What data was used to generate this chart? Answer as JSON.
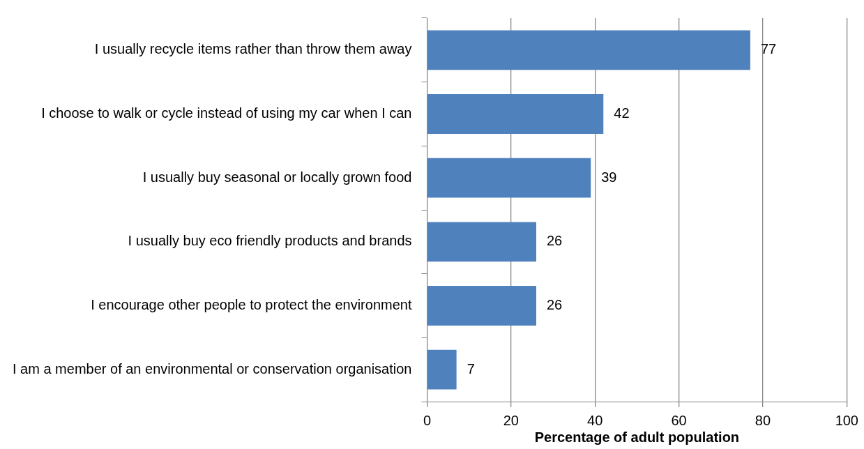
{
  "chart_data": {
    "type": "bar",
    "orientation": "horizontal",
    "categories": [
      "I usually recycle items rather than throw them away",
      "I choose to walk or cycle instead of using my car when I can",
      "I usually buy seasonal or locally grown food",
      "I usually buy eco friendly products and brands",
      "I encourage other people to protect the environment",
      "I am a member of an environmental or conservation organisation"
    ],
    "values": [
      77,
      42,
      39,
      26,
      26,
      7
    ],
    "color": "#4f81bd",
    "xlim": [
      0,
      100
    ],
    "xticks": [
      0,
      20,
      40,
      60,
      80,
      100
    ],
    "xlabel": "Percentage of adult population",
    "grid": "x",
    "data_labels": true,
    "legend": false
  }
}
